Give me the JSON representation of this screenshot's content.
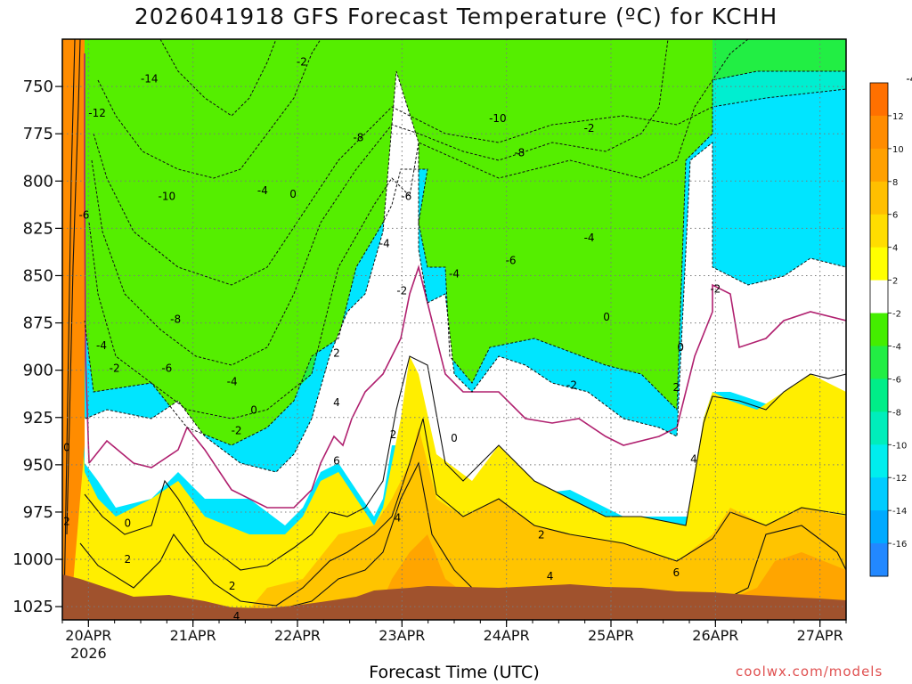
{
  "chart_data": {
    "type": "heatmap",
    "title": "2026041918 GFS Forecast Temperature (ºC) for KCHH",
    "xlabel": "Forecast Time (UTC)",
    "ylabel": "",
    "credit": "coolwx.com/models",
    "y_axis": {
      "quantity": "pressure",
      "ticks": [
        750,
        775,
        800,
        825,
        850,
        875,
        900,
        925,
        950,
        975,
        1000,
        1025
      ],
      "range": [
        725,
        1032
      ],
      "inverted": true
    },
    "x_axis": {
      "start": "2026-04-19T18:00Z",
      "end": "2026-04-27T06:00Z",
      "ticks": [
        {
          "label": "20APR",
          "sub": "2026",
          "time": "2026-04-20T00:00Z"
        },
        {
          "label": "21APR",
          "sub": "",
          "time": "2026-04-21T00:00Z"
        },
        {
          "label": "22APR",
          "sub": "",
          "time": "2026-04-22T00:00Z"
        },
        {
          "label": "23APR",
          "sub": "",
          "time": "2026-04-23T00:00Z"
        },
        {
          "label": "24APR",
          "sub": "",
          "time": "2026-04-24T00:00Z"
        },
        {
          "label": "25APR",
          "sub": "",
          "time": "2026-04-25T00:00Z"
        },
        {
          "label": "26APR",
          "sub": "",
          "time": "2026-04-26T00:00Z"
        },
        {
          "label": "27APR",
          "sub": "",
          "time": "2026-04-27T00:00Z"
        }
      ]
    },
    "grid": true,
    "colorbar": {
      "placement": "right",
      "ticks": [
        "12",
        "10",
        "8",
        "6",
        "4",
        "2",
        "-2",
        "-4",
        "-6",
        "-8",
        "-10",
        "-12",
        "-14",
        "-16"
      ],
      "colors": [
        "#ff7000",
        "#ff8c00",
        "#ffa000",
        "#ffbf00",
        "#ffdd00",
        "#ffff00",
        "#ffffff",
        "#44ee00",
        "#22ee44",
        "#00ee88",
        "#00eebb",
        "#00eeee",
        "#00ccff",
        "#00aaff",
        "#2288ff"
      ]
    },
    "ground_color": "#a0522d",
    "contour_labels": [
      {
        "text": "-2",
        "t": 55,
        "p": 737
      },
      {
        "text": "-14",
        "t": 20,
        "p": 746
      },
      {
        "text": "-4",
        "t": 195,
        "p": 746
      },
      {
        "text": "-12",
        "t": 8,
        "p": 764
      },
      {
        "text": "-10",
        "t": 100,
        "p": 767
      },
      {
        "text": "-8",
        "t": 68,
        "p": 777
      },
      {
        "text": "-8",
        "t": 105,
        "p": 785
      },
      {
        "text": "-2",
        "t": 121,
        "p": 772
      },
      {
        "text": "-4",
        "t": 46,
        "p": 805
      },
      {
        "text": "0",
        "t": 53,
        "p": 807
      },
      {
        "text": "-10",
        "t": 24,
        "p": 808
      },
      {
        "text": "-6",
        "t": 79,
        "p": 808
      },
      {
        "text": "-6",
        "t": 5,
        "p": 818
      },
      {
        "text": "-4",
        "t": 121,
        "p": 830
      },
      {
        "text": "-4",
        "t": 74,
        "p": 833
      },
      {
        "text": "-6",
        "t": 103,
        "p": 842
      },
      {
        "text": "-4",
        "t": 90,
        "p": 849
      },
      {
        "text": "-2",
        "t": 78,
        "p": 858
      },
      {
        "text": "-2",
        "t": 150,
        "p": 857
      },
      {
        "text": "-8",
        "t": 26,
        "p": 873
      },
      {
        "text": "0",
        "t": 125,
        "p": 872
      },
      {
        "text": "-4",
        "t": 9,
        "p": 887
      },
      {
        "text": "0",
        "t": 142,
        "p": 888
      },
      {
        "text": "2",
        "t": 63,
        "p": 891
      },
      {
        "text": "-2",
        "t": 12,
        "p": 899
      },
      {
        "text": "-6",
        "t": 24,
        "p": 899
      },
      {
        "text": "-4",
        "t": 39,
        "p": 906
      },
      {
        "text": "-2",
        "t": 117,
        "p": 908
      },
      {
        "text": "2",
        "t": 141,
        "p": 909
      },
      {
        "text": "4",
        "t": 63,
        "p": 917
      },
      {
        "text": "0",
        "t": 44,
        "p": 921
      },
      {
        "text": "-2",
        "t": 40,
        "p": 932
      },
      {
        "text": "2",
        "t": 76,
        "p": 934
      },
      {
        "text": "0",
        "t": 90,
        "p": 936
      },
      {
        "text": "0",
        "t": 1,
        "p": 941
      },
      {
        "text": "6",
        "t": 63,
        "p": 948
      },
      {
        "text": "4",
        "t": 145,
        "p": 947
      },
      {
        "text": "2",
        "t": 1,
        "p": 980
      },
      {
        "text": "0",
        "t": 15,
        "p": 981
      },
      {
        "text": "4",
        "t": 77,
        "p": 978
      },
      {
        "text": "2",
        "t": 110,
        "p": 987
      },
      {
        "text": "2",
        "t": 15,
        "p": 1000
      },
      {
        "text": "4",
        "t": 112,
        "p": 1009
      },
      {
        "text": "6",
        "t": 141,
        "p": 1007
      },
      {
        "text": "2",
        "t": 39,
        "p": 1014
      },
      {
        "text": "4",
        "t": 40,
        "p": 1030
      }
    ]
  }
}
